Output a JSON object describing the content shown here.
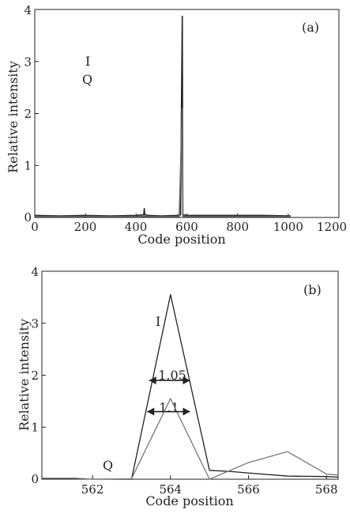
{
  "chart_data": [
    {
      "panel_label": "(a)",
      "type": "line",
      "xlabel": "Code position",
      "ylabel": "Relative intensity",
      "xlim": [
        0,
        1200
      ],
      "ylim": [
        0,
        4
      ],
      "xticks": [
        "0",
        "200",
        "400",
        "600",
        "800",
        "1000",
        "1200"
      ],
      "yticks": [
        "0",
        "1",
        "2",
        "3",
        "4"
      ],
      "annotations": [
        "I",
        "Q"
      ],
      "series": [
        {
          "name": "I",
          "color": "#222222",
          "x": [
            0,
            100,
            200,
            300,
            400,
            430,
            432,
            434,
            450,
            500,
            560,
            575,
            582,
            584,
            586,
            600,
            700,
            800,
            900,
            1010
          ],
          "y": [
            0.04,
            0.03,
            0.04,
            0.03,
            0.04,
            0.05,
            0.17,
            0.05,
            0.04,
            0.03,
            0.04,
            0.05,
            3.87,
            0.06,
            0.05,
            0.04,
            0.04,
            0.04,
            0.04,
            0.03
          ]
        },
        {
          "name": "Q",
          "color": "#666666",
          "x": [
            0,
            100,
            200,
            300,
            400,
            500,
            570,
            582,
            584,
            586,
            600,
            700,
            800,
            900,
            1010
          ],
          "y": [
            0.02,
            0.02,
            0.02,
            0.02,
            0.02,
            0.02,
            0.02,
            2.1,
            0.03,
            0.02,
            0.02,
            0.02,
            0.02,
            0.02,
            0.02
          ]
        }
      ]
    },
    {
      "panel_label": "(b)",
      "type": "line",
      "xlabel": "Code position",
      "ylabel": "Relative intensity",
      "xlim": [
        560.7,
        568.3
      ],
      "ylim": [
        0,
        4
      ],
      "xticks": [
        "562",
        "564",
        "566",
        "568"
      ],
      "yticks": [
        "0",
        "1",
        "2",
        "3",
        "4"
      ],
      "annotations": [
        "I",
        "Q",
        "1.05",
        "1.1"
      ],
      "width_markers": [
        {
          "label": "1.05",
          "x_start": 563.45,
          "x_end": 564.5,
          "y": 1.9
        },
        {
          "label": "1.1",
          "x_start": 563.4,
          "x_end": 564.5,
          "y": 1.3
        }
      ],
      "series": [
        {
          "name": "I",
          "color": "#222222",
          "x": [
            560.7,
            561.5,
            562,
            563,
            564,
            565,
            565.5,
            566,
            567,
            568,
            568.3
          ],
          "y": [
            0.02,
            0.02,
            0.0,
            0.0,
            3.55,
            0.17,
            0.15,
            0.12,
            0.06,
            0.05,
            0.04
          ]
        },
        {
          "name": "Q",
          "color": "#777777",
          "x": [
            560.7,
            561.5,
            562,
            563,
            564,
            565,
            566,
            567,
            568,
            568.3
          ],
          "y": [
            0.02,
            0.02,
            0.0,
            0.01,
            1.55,
            0.0,
            0.32,
            0.53,
            0.1,
            0.08
          ]
        }
      ]
    }
  ]
}
